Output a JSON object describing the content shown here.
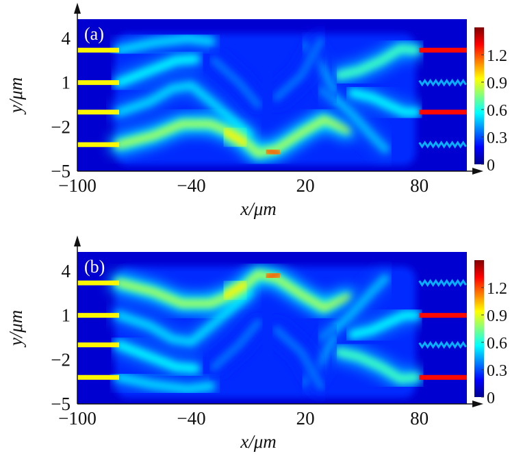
{
  "chart_data": [
    {
      "type": "heatmap",
      "panel_label": "(a)",
      "xlabel": "x/μm",
      "ylabel": "y/μm",
      "xlim": [
        -100,
        105
      ],
      "ylim": [
        -5,
        5.3
      ],
      "xticks": [
        -100,
        -40,
        20,
        80
      ],
      "xtick_labels": [
        "−100",
        "−40",
        "20",
        "80"
      ],
      "yticks": [
        4,
        1,
        -2,
        -5
      ],
      "ytick_labels": [
        "4",
        "1",
        "−2",
        "−5"
      ],
      "colorbar": {
        "range": [
          0,
          1.5
        ],
        "ticks": [
          0,
          0.3,
          0.6,
          0.9,
          1.2
        ],
        "tick_labels": [
          "0",
          "0.3",
          "0.6",
          "0.9",
          "1.2"
        ],
        "colormap": "jet"
      },
      "background_intensity": 0.12,
      "input_waveguides": {
        "y": [
          3.2,
          1,
          -1,
          -3.2
        ],
        "x_range": [
          -100,
          -78
        ],
        "intensity": 0.95
      },
      "output_waveguides": [
        {
          "y": 3.2,
          "intensity": 1.3,
          "style": "solid"
        },
        {
          "y": 1,
          "intensity": 0.45,
          "style": "zigzag"
        },
        {
          "y": -1,
          "intensity": 1.3,
          "style": "solid"
        },
        {
          "y": -3.2,
          "intensity": 0.45,
          "style": "zigzag"
        }
      ],
      "beams": [
        {
          "points": [
            [
              -78,
              3.2
            ],
            [
              -60,
              3.7
            ],
            [
              -42,
              4.0
            ],
            [
              -30,
              3.8
            ]
          ],
          "intensity": 0.5
        },
        {
          "points": [
            [
              -78,
              1
            ],
            [
              -62,
              1.8
            ],
            [
              -48,
              2.5
            ],
            [
              -38,
              2.6
            ]
          ],
          "intensity": 0.55
        },
        {
          "points": [
            [
              -78,
              -1
            ],
            [
              -62,
              -0.3
            ],
            [
              -50,
              0.6
            ],
            [
              -40,
              0.8
            ],
            [
              -25,
              -0.8
            ],
            [
              -10,
              -2.5
            ]
          ],
          "intensity": 0.5
        },
        {
          "points": [
            [
              -78,
              -3.2
            ],
            [
              -60,
              -2.6
            ],
            [
              -45,
              -1.8
            ],
            [
              -30,
              -1.8
            ],
            [
              -15,
              -2.6
            ],
            [
              -5,
              -3.8
            ],
            [
              5,
              -3.5
            ],
            [
              18,
              -2.4
            ],
            [
              30,
              -1.5
            ],
            [
              42,
              -2.2
            ]
          ],
          "intensity": 0.8
        },
        {
          "points": [
            [
              -22,
              -2.3
            ],
            [
              -12,
              -3.1
            ]
          ],
          "intensity": 0.95
        },
        {
          "points": [
            [
              0,
              -3.6
            ],
            [
              6,
              -3.8
            ]
          ],
          "intensity": 1.2
        },
        {
          "points": [
            [
              30,
              0.5
            ],
            [
              42,
              -0.8
            ],
            [
              55,
              -2.6
            ],
            [
              62,
              -3.5
            ]
          ],
          "intensity": 0.45
        },
        {
          "points": [
            [
              38,
              1.5
            ],
            [
              48,
              1.8
            ],
            [
              60,
              2.5
            ],
            [
              70,
              3.3
            ],
            [
              78,
              3.2
            ]
          ],
          "intensity": 0.65
        },
        {
          "points": [
            [
              45,
              0.3
            ],
            [
              55,
              0
            ],
            [
              65,
              -0.6
            ],
            [
              72,
              -1
            ],
            [
              78,
              -1
            ]
          ],
          "intensity": 0.55
        },
        {
          "points": [
            [
              20,
              3.5
            ],
            [
              28,
              2.2
            ],
            [
              35,
              0.5
            ]
          ],
          "intensity": 0.4
        },
        {
          "points": [
            [
              -28,
              2.5
            ],
            [
              -15,
              1.0
            ],
            [
              -5,
              -0.5
            ]
          ],
          "intensity": 0.35
        },
        {
          "points": [
            [
              5,
              0
            ],
            [
              18,
              1.5
            ],
            [
              28,
              3.8
            ]
          ],
          "intensity": 0.35
        }
      ]
    },
    {
      "type": "heatmap",
      "panel_label": "(b)",
      "xlabel": "x/μm",
      "ylabel": "y/μm",
      "xlim": [
        -100,
        105
      ],
      "ylim": [
        -5,
        5.3
      ],
      "xticks": [
        -100,
        -40,
        20,
        80
      ],
      "xtick_labels": [
        "−100",
        "−40",
        "20",
        "80"
      ],
      "yticks": [
        4,
        1,
        -2,
        -5
      ],
      "ytick_labels": [
        "4",
        "1",
        "−2",
        "−5"
      ],
      "colorbar": {
        "range": [
          0,
          1.5
        ],
        "ticks": [
          0,
          0.3,
          0.6,
          0.9,
          1.2
        ],
        "tick_labels": [
          "0",
          "0.3",
          "0.6",
          "0.9",
          "1.2"
        ],
        "colormap": "jet"
      },
      "background_intensity": 0.12,
      "input_waveguides": {
        "y": [
          3.2,
          1,
          -1,
          -3.2
        ],
        "x_range": [
          -100,
          -78
        ],
        "intensity": 0.95
      },
      "output_waveguides": [
        {
          "y": 3.2,
          "intensity": 0.45,
          "style": "zigzag"
        },
        {
          "y": 1,
          "intensity": 1.3,
          "style": "solid"
        },
        {
          "y": -1,
          "intensity": 0.45,
          "style": "zigzag"
        },
        {
          "y": -3.2,
          "intensity": 1.3,
          "style": "solid"
        }
      ],
      "beams": [
        {
          "points": [
            [
              -78,
              -3.2
            ],
            [
              -60,
              -3.7
            ],
            [
              -42,
              -4.0
            ],
            [
              -30,
              -3.8
            ]
          ],
          "intensity": 0.5
        },
        {
          "points": [
            [
              -78,
              -1
            ],
            [
              -62,
              -1.8
            ],
            [
              -48,
              -2.5
            ],
            [
              -38,
              -2.6
            ]
          ],
          "intensity": 0.55
        },
        {
          "points": [
            [
              -78,
              1
            ],
            [
              -62,
              0.3
            ],
            [
              -50,
              -0.6
            ],
            [
              -40,
              -0.8
            ],
            [
              -25,
              0.8
            ],
            [
              -10,
              2.5
            ]
          ],
          "intensity": 0.5
        },
        {
          "points": [
            [
              -78,
              3.2
            ],
            [
              -60,
              2.6
            ],
            [
              -45,
              1.8
            ],
            [
              -30,
              1.8
            ],
            [
              -15,
              2.6
            ],
            [
              -5,
              3.8
            ],
            [
              5,
              3.5
            ],
            [
              18,
              2.4
            ],
            [
              30,
              1.5
            ],
            [
              42,
              2.2
            ]
          ],
          "intensity": 0.8
        },
        {
          "points": [
            [
              -22,
              2.3
            ],
            [
              -12,
              3.1
            ]
          ],
          "intensity": 0.95
        },
        {
          "points": [
            [
              0,
              3.6
            ],
            [
              6,
              3.8
            ]
          ],
          "intensity": 1.2
        },
        {
          "points": [
            [
              30,
              -0.5
            ],
            [
              42,
              0.8
            ],
            [
              55,
              2.6
            ],
            [
              62,
              3.5
            ]
          ],
          "intensity": 0.45
        },
        {
          "points": [
            [
              38,
              -1.5
            ],
            [
              48,
              -1.8
            ],
            [
              60,
              -2.5
            ],
            [
              70,
              -3.3
            ],
            [
              78,
              -3.2
            ]
          ],
          "intensity": 0.65
        },
        {
          "points": [
            [
              45,
              -0.3
            ],
            [
              55,
              0
            ],
            [
              65,
              0.6
            ],
            [
              72,
              1
            ],
            [
              78,
              1
            ]
          ],
          "intensity": 0.55
        },
        {
          "points": [
            [
              20,
              -3.5
            ],
            [
              28,
              -2.2
            ],
            [
              35,
              -0.5
            ]
          ],
          "intensity": 0.4
        },
        {
          "points": [
            [
              -28,
              -2.5
            ],
            [
              -15,
              -1.0
            ],
            [
              -5,
              0.5
            ]
          ],
          "intensity": 0.35
        },
        {
          "points": [
            [
              5,
              0
            ],
            [
              18,
              -1.5
            ],
            [
              28,
              -3.8
            ]
          ],
          "intensity": 0.35
        }
      ]
    }
  ]
}
